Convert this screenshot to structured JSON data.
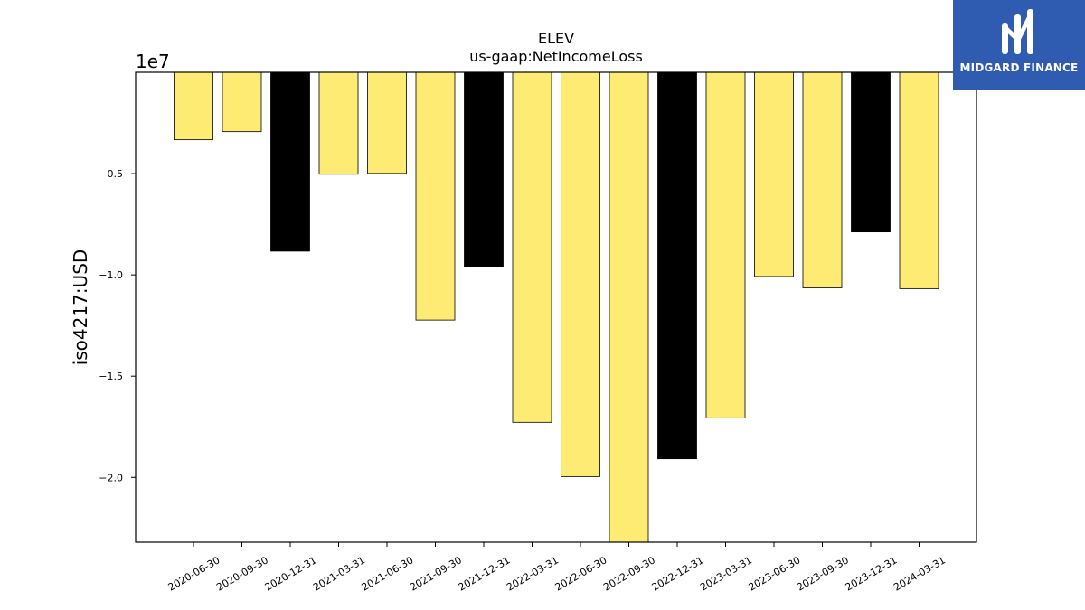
{
  "chart_data": {
    "type": "bar",
    "title": "ELEV",
    "subtitle": "us-gaap:NetIncomeLoss",
    "ylabel": "iso4217:USD",
    "y_offset_label": "1e7",
    "xlabel": "",
    "categories": [
      "2020-06-30",
      "2020-09-30",
      "2020-12-31",
      "2021-03-31",
      "2021-06-30",
      "2021-09-30",
      "2021-12-31",
      "2022-03-31",
      "2022-06-30",
      "2022-09-30",
      "2022-12-31",
      "2023-03-31",
      "2023-06-30",
      "2023-09-30",
      "2023-12-31",
      "2024-03-31"
    ],
    "values": [
      -3330000,
      -2930000,
      -8830000,
      -5030000,
      -4990000,
      -12230000,
      -9580000,
      -17280000,
      -19960000,
      -23200000,
      -19080000,
      -17060000,
      -10080000,
      -10640000,
      -7880000,
      -10680000
    ],
    "bar_colors": [
      "#fdeb73",
      "#fdeb73",
      "#000000",
      "#fdeb73",
      "#fdeb73",
      "#fdeb73",
      "#000000",
      "#fdeb73",
      "#fdeb73",
      "#fdeb73",
      "#000000",
      "#fdeb73",
      "#fdeb73",
      "#fdeb73",
      "#000000",
      "#fdeb73"
    ],
    "ylim": [
      -23200000,
      0
    ],
    "yticks": [
      -5000000,
      -10000000,
      -15000000,
      -20000000
    ],
    "ytick_labels": [
      "−0.5",
      "−1.0",
      "−1.5",
      "−2.0"
    ],
    "grid": false,
    "legend": "none"
  },
  "logo": {
    "name": "MIDGARD FINANCE",
    "bg_color": "#2f5bb0"
  }
}
